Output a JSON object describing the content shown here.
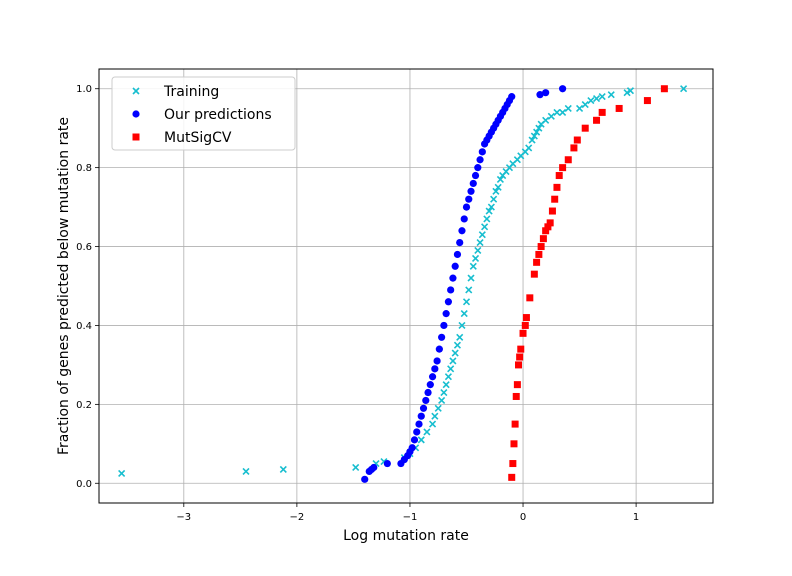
{
  "chart_data": {
    "type": "scatter",
    "xlabel": "Log mutation rate",
    "ylabel": "Fraction of genes predicted below mutation rate",
    "xlim": [
      -3.75,
      1.68
    ],
    "ylim": [
      -0.05,
      1.05
    ],
    "xticks": [
      -3,
      -2,
      -1,
      0,
      1
    ],
    "xtick_labels": [
      "−3",
      "−2",
      "−1",
      "0",
      "1"
    ],
    "yticks": [
      0.0,
      0.2,
      0.4,
      0.6,
      0.8,
      1.0
    ],
    "ytick_labels": [
      "0.0",
      "0.2",
      "0.4",
      "0.6",
      "0.8",
      "1.0"
    ],
    "grid": true,
    "legend_position": "top-left",
    "series": [
      {
        "name": "Training",
        "marker": "x",
        "color": "#17becf",
        "x": [
          -3.55,
          -2.45,
          -2.12,
          -1.48,
          -1.3,
          -1.23,
          -1.05,
          -1.0,
          -0.95,
          -0.9,
          -0.85,
          -0.8,
          -0.78,
          -0.75,
          -0.72,
          -0.7,
          -0.68,
          -0.66,
          -0.64,
          -0.62,
          -0.6,
          -0.58,
          -0.56,
          -0.54,
          -0.52,
          -0.5,
          -0.48,
          -0.46,
          -0.44,
          -0.42,
          -0.4,
          -0.38,
          -0.36,
          -0.34,
          -0.32,
          -0.3,
          -0.28,
          -0.26,
          -0.24,
          -0.22,
          -0.2,
          -0.18,
          -0.15,
          -0.12,
          -0.09,
          -0.05,
          -0.02,
          0.02,
          0.05,
          0.08,
          0.1,
          0.12,
          0.14,
          0.16,
          0.2,
          0.25,
          0.3,
          0.35,
          0.4,
          0.5,
          0.55,
          0.6,
          0.65,
          0.7,
          0.78,
          0.92,
          0.95,
          1.42
        ],
        "y": [
          0.025,
          0.03,
          0.035,
          0.04,
          0.05,
          0.055,
          0.065,
          0.075,
          0.09,
          0.11,
          0.13,
          0.15,
          0.17,
          0.19,
          0.21,
          0.23,
          0.25,
          0.27,
          0.29,
          0.31,
          0.33,
          0.35,
          0.37,
          0.4,
          0.43,
          0.46,
          0.49,
          0.52,
          0.55,
          0.57,
          0.59,
          0.61,
          0.63,
          0.65,
          0.67,
          0.69,
          0.7,
          0.72,
          0.74,
          0.75,
          0.77,
          0.78,
          0.79,
          0.8,
          0.81,
          0.82,
          0.83,
          0.84,
          0.85,
          0.87,
          0.88,
          0.89,
          0.9,
          0.91,
          0.92,
          0.93,
          0.94,
          0.94,
          0.95,
          0.95,
          0.96,
          0.97,
          0.975,
          0.98,
          0.985,
          0.99,
          0.995,
          1.0
        ]
      },
      {
        "name": "Our predictions",
        "marker": "o",
        "color": "#0000ff",
        "x": [
          -1.4,
          -1.36,
          -1.34,
          -1.32,
          -1.2,
          -1.08,
          -1.05,
          -1.02,
          -1.0,
          -0.98,
          -0.96,
          -0.94,
          -0.92,
          -0.9,
          -0.88,
          -0.86,
          -0.84,
          -0.82,
          -0.8,
          -0.78,
          -0.76,
          -0.74,
          -0.72,
          -0.7,
          -0.68,
          -0.66,
          -0.64,
          -0.62,
          -0.6,
          -0.58,
          -0.56,
          -0.54,
          -0.52,
          -0.5,
          -0.48,
          -0.46,
          -0.44,
          -0.42,
          -0.4,
          -0.38,
          -0.36,
          -0.34,
          -0.32,
          -0.3,
          -0.28,
          -0.26,
          -0.24,
          -0.22,
          -0.2,
          -0.18,
          -0.16,
          -0.14,
          -0.12,
          -0.1,
          0.15,
          0.2,
          0.35
        ],
        "y": [
          0.01,
          0.03,
          0.035,
          0.04,
          0.05,
          0.05,
          0.06,
          0.07,
          0.08,
          0.09,
          0.11,
          0.13,
          0.15,
          0.17,
          0.19,
          0.21,
          0.23,
          0.25,
          0.27,
          0.29,
          0.31,
          0.34,
          0.37,
          0.4,
          0.43,
          0.46,
          0.49,
          0.52,
          0.55,
          0.58,
          0.61,
          0.64,
          0.67,
          0.7,
          0.72,
          0.74,
          0.76,
          0.78,
          0.8,
          0.82,
          0.84,
          0.86,
          0.87,
          0.88,
          0.89,
          0.9,
          0.91,
          0.92,
          0.93,
          0.94,
          0.95,
          0.96,
          0.97,
          0.98,
          0.985,
          0.99,
          1.0
        ]
      },
      {
        "name": "MutSigCV",
        "marker": "s",
        "color": "#ff0000",
        "x": [
          -0.1,
          -0.09,
          -0.08,
          -0.07,
          -0.06,
          -0.05,
          -0.04,
          -0.03,
          -0.02,
          0.0,
          0.02,
          0.03,
          0.06,
          0.1,
          0.12,
          0.14,
          0.16,
          0.18,
          0.2,
          0.22,
          0.24,
          0.26,
          0.28,
          0.3,
          0.32,
          0.35,
          0.4,
          0.45,
          0.48,
          0.55,
          0.65,
          0.7,
          0.85,
          1.1,
          1.25
        ],
        "y": [
          0.015,
          0.05,
          0.1,
          0.15,
          0.22,
          0.25,
          0.3,
          0.32,
          0.34,
          0.38,
          0.4,
          0.42,
          0.47,
          0.53,
          0.56,
          0.58,
          0.6,
          0.62,
          0.64,
          0.65,
          0.66,
          0.69,
          0.72,
          0.75,
          0.78,
          0.8,
          0.82,
          0.85,
          0.87,
          0.9,
          0.92,
          0.94,
          0.95,
          0.97,
          1.0
        ]
      }
    ]
  }
}
